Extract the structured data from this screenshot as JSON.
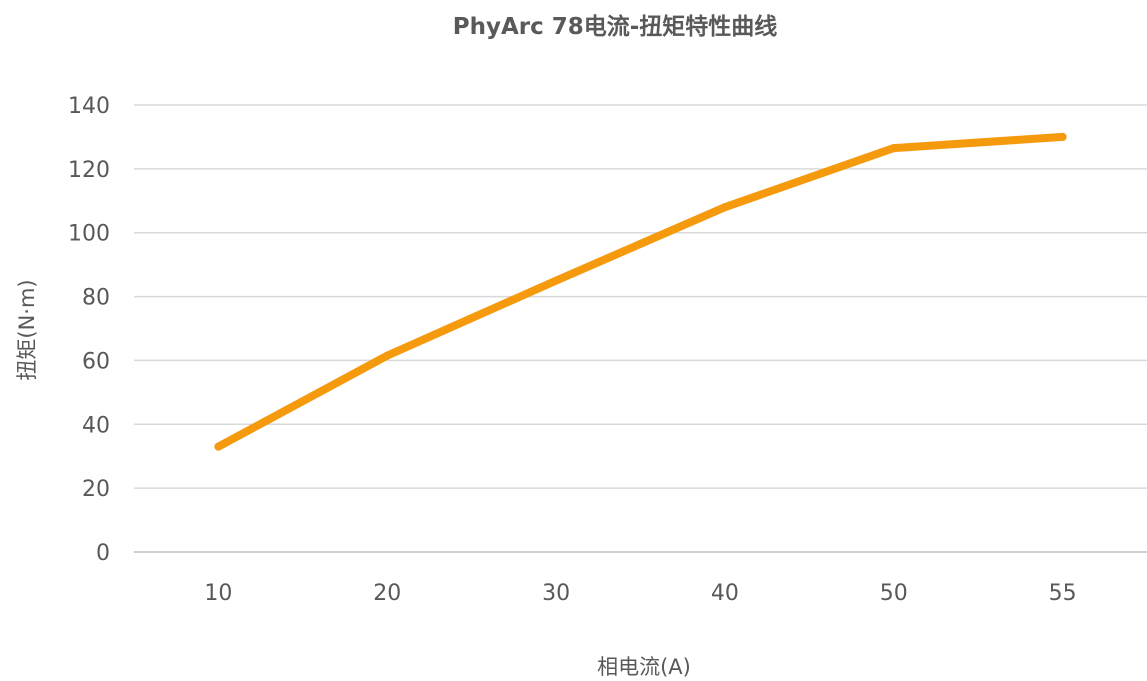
{
  "chart_data": {
    "type": "line",
    "title": "PhyArc 78电流-扭矩特性曲线",
    "xlabel": "相电流(A)",
    "ylabel": "扭矩(N·m)",
    "categories": [
      "10",
      "20",
      "30",
      "40",
      "50",
      "55"
    ],
    "ylim": [
      0,
      140
    ],
    "yticks": [
      0,
      20,
      40,
      60,
      80,
      100,
      120,
      140
    ],
    "grid": true,
    "legend": "none",
    "series": [
      {
        "values": [
          33,
          61.5,
          85,
          108,
          126.5,
          130
        ],
        "color": "#f59a0d"
      }
    ]
  }
}
